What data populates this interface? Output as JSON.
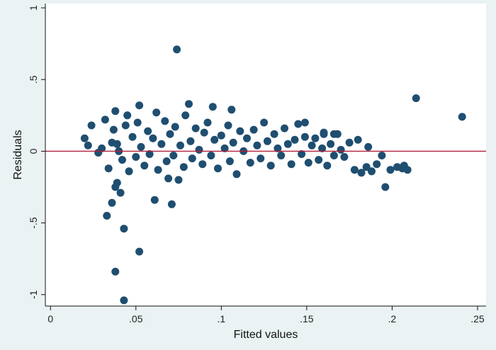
{
  "chart_data": {
    "type": "scatter",
    "title": "",
    "xlabel": "Fitted values",
    "ylabel": "Residuals",
    "xlim": [
      -0.003,
      0.255
    ],
    "ylim": [
      -1.08,
      1.03
    ],
    "x_ticks": [
      0,
      0.05,
      0.1,
      0.15,
      0.2,
      0.25
    ],
    "x_tick_labels": [
      "0",
      ".05",
      ".1",
      ".15",
      ".2",
      ".25"
    ],
    "y_ticks": [
      -1,
      -0.5,
      0,
      0.5,
      1
    ],
    "y_tick_labels": [
      "-1",
      "-.5",
      "0",
      ".5",
      "1"
    ],
    "reference_line": {
      "y": 0,
      "color": "#b0203a"
    },
    "grid": false,
    "legend": "none",
    "colors": {
      "points": "#1f4e70",
      "background": "#eaf2f3",
      "plot_area": "#ffffff",
      "axes": "#111111"
    },
    "series": [
      {
        "points": [
          [
            0.074,
            0.71
          ],
          [
            0.214,
            0.37
          ],
          [
            0.241,
            0.24
          ],
          [
            0.081,
            0.33
          ],
          [
            0.095,
            0.31
          ],
          [
            0.106,
            0.29
          ],
          [
            0.052,
            0.32
          ],
          [
            0.038,
            0.28
          ],
          [
            0.041,
            -0.29
          ],
          [
            0.038,
            -0.25
          ],
          [
            0.039,
            -0.22
          ],
          [
            0.036,
            -0.36
          ],
          [
            0.033,
            -0.45
          ],
          [
            0.043,
            -0.54
          ],
          [
            0.052,
            -0.7
          ],
          [
            0.038,
            -0.84
          ],
          [
            0.043,
            -1.04
          ],
          [
            0.061,
            -0.34
          ],
          [
            0.071,
            -0.37
          ],
          [
            0.075,
            -0.2
          ],
          [
            0.069,
            -0.19
          ],
          [
            0.02,
            0.09
          ],
          [
            0.022,
            0.04
          ],
          [
            0.024,
            0.18
          ],
          [
            0.028,
            -0.01
          ],
          [
            0.03,
            0.02
          ],
          [
            0.032,
            0.22
          ],
          [
            0.034,
            -0.12
          ],
          [
            0.036,
            0.06
          ],
          [
            0.037,
            0.15
          ],
          [
            0.039,
            0.05
          ],
          [
            0.04,
            0.0
          ],
          [
            0.042,
            -0.06
          ],
          [
            0.044,
            0.18
          ],
          [
            0.045,
            0.25
          ],
          [
            0.046,
            -0.14
          ],
          [
            0.048,
            0.1
          ],
          [
            0.05,
            -0.04
          ],
          [
            0.051,
            0.2
          ],
          [
            0.053,
            0.03
          ],
          [
            0.055,
            -0.1
          ],
          [
            0.057,
            0.14
          ],
          [
            0.058,
            -0.02
          ],
          [
            0.06,
            0.09
          ],
          [
            0.062,
            0.27
          ],
          [
            0.063,
            -0.13
          ],
          [
            0.065,
            0.05
          ],
          [
            0.067,
            0.21
          ],
          [
            0.068,
            -0.07
          ],
          [
            0.07,
            0.12
          ],
          [
            0.072,
            -0.03
          ],
          [
            0.073,
            0.17
          ],
          [
            0.076,
            0.04
          ],
          [
            0.078,
            -0.11
          ],
          [
            0.079,
            0.25
          ],
          [
            0.082,
            0.07
          ],
          [
            0.083,
            -0.05
          ],
          [
            0.085,
            0.16
          ],
          [
            0.087,
            0.01
          ],
          [
            0.089,
            -0.09
          ],
          [
            0.09,
            0.13
          ],
          [
            0.092,
            0.2
          ],
          [
            0.094,
            -0.03
          ],
          [
            0.096,
            0.08
          ],
          [
            0.098,
            -0.12
          ],
          [
            0.1,
            0.11
          ],
          [
            0.102,
            0.02
          ],
          [
            0.104,
            0.18
          ],
          [
            0.105,
            -0.07
          ],
          [
            0.107,
            0.06
          ],
          [
            0.109,
            -0.16
          ],
          [
            0.111,
            0.14
          ],
          [
            0.113,
            0.0
          ],
          [
            0.115,
            0.09
          ],
          [
            0.117,
            -0.08
          ],
          [
            0.119,
            0.15
          ],
          [
            0.121,
            0.04
          ],
          [
            0.123,
            -0.05
          ],
          [
            0.125,
            0.2
          ],
          [
            0.127,
            0.07
          ],
          [
            0.129,
            -0.1
          ],
          [
            0.131,
            0.12
          ],
          [
            0.133,
            0.02
          ],
          [
            0.135,
            -0.03
          ],
          [
            0.137,
            0.16
          ],
          [
            0.139,
            0.05
          ],
          [
            0.141,
            -0.09
          ],
          [
            0.143,
            0.08
          ],
          [
            0.145,
            0.19
          ],
          [
            0.147,
            -0.02
          ],
          [
            0.149,
            0.1
          ],
          [
            0.151,
            -0.08
          ],
          [
            0.153,
            0.04
          ],
          [
            0.155,
            0.09
          ],
          [
            0.157,
            -0.06
          ],
          [
            0.159,
            0.02
          ],
          [
            0.16,
            0.13
          ],
          [
            0.162,
            -0.1
          ],
          [
            0.164,
            0.05
          ],
          [
            0.166,
            -0.03
          ],
          [
            0.168,
            0.12
          ],
          [
            0.17,
            0.01
          ],
          [
            0.172,
            -0.04
          ],
          [
            0.175,
            0.06
          ],
          [
            0.178,
            -0.13
          ],
          [
            0.18,
            0.08
          ],
          [
            0.182,
            -0.15
          ],
          [
            0.185,
            -0.11
          ],
          [
            0.186,
            0.03
          ],
          [
            0.188,
            -0.14
          ],
          [
            0.191,
            -0.09
          ],
          [
            0.194,
            -0.03
          ],
          [
            0.196,
            -0.25
          ],
          [
            0.199,
            -0.13
          ],
          [
            0.203,
            -0.11
          ],
          [
            0.206,
            -0.12
          ],
          [
            0.209,
            -0.13
          ],
          [
            0.207,
            -0.1
          ],
          [
            0.149,
            0.2
          ],
          [
            0.16,
            0.12
          ],
          [
            0.166,
            0.12
          ]
        ]
      }
    ]
  }
}
